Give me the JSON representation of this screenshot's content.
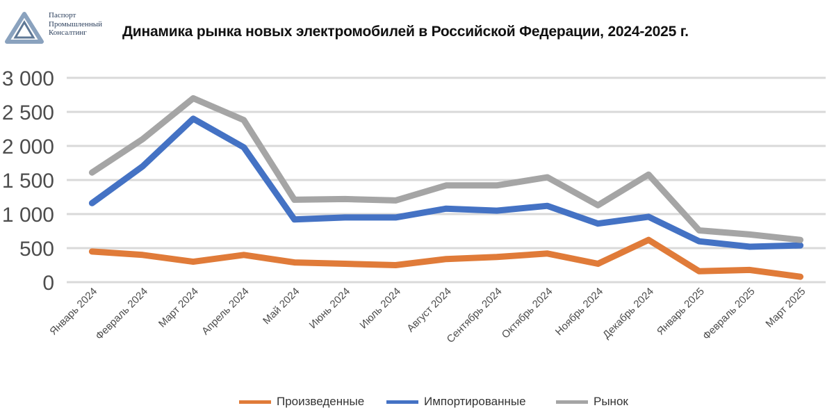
{
  "brand": {
    "lines": [
      "Паспорт",
      "Промышленный",
      "Консалтинг"
    ]
  },
  "chart_data": {
    "type": "line",
    "title": "Динамика рынка новых электромобилей в Российской Федерации, 2024-2025 г.",
    "xlabel": "",
    "ylabel": "",
    "ylim": [
      0,
      3000
    ],
    "yticks": [
      0,
      500,
      1000,
      1500,
      2000,
      2500,
      3000
    ],
    "ytick_labels": [
      "0",
      "500",
      "1 000",
      "1 500",
      "2 000",
      "2 500",
      "3 000"
    ],
    "grid": true,
    "legend_position": "bottom",
    "categories": [
      "Январь 2024",
      "Февраль 2024",
      "Март 2024",
      "Апрель 2024",
      "Май 2024",
      "Июнь 2024",
      "Июль 2024",
      "Август 2024",
      "Сентябрь 2024",
      "Октябрь 2024",
      "Ноябрь 2024",
      "Декабрь 2024",
      "Январь 2025",
      "Февраль 2025",
      "Март 2025"
    ],
    "series": [
      {
        "name": "Произведенные",
        "color": "#e07b39",
        "values": [
          450,
          400,
          300,
          400,
          290,
          270,
          250,
          340,
          370,
          420,
          270,
          620,
          160,
          180,
          80
        ]
      },
      {
        "name": "Импортированные",
        "color": "#4472c4",
        "values": [
          1160,
          1700,
          2400,
          1980,
          920,
          950,
          950,
          1080,
          1050,
          1120,
          860,
          960,
          600,
          520,
          540
        ]
      },
      {
        "name": "Рынок",
        "color": "#a5a5a5",
        "values": [
          1610,
          2100,
          2700,
          2380,
          1210,
          1220,
          1200,
          1420,
          1420,
          1540,
          1130,
          1580,
          760,
          700,
          620
        ]
      }
    ]
  }
}
